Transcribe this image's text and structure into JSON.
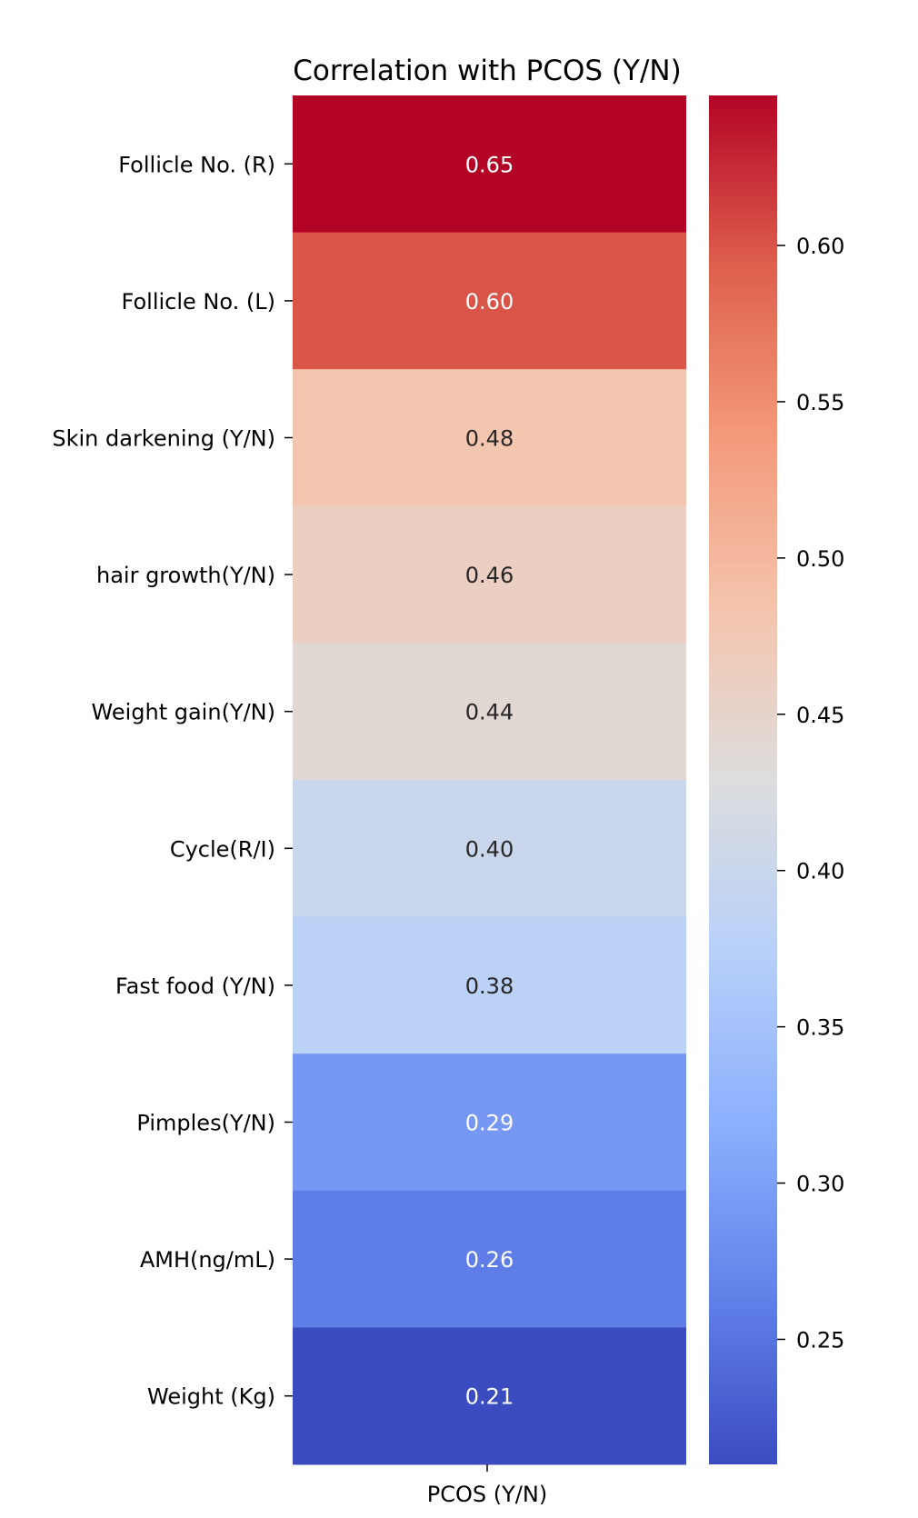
{
  "chart_data": {
    "type": "heatmap",
    "title": "Correlation with PCOS (Y/N)",
    "column": "PCOS (Y/N)",
    "rows": [
      "Follicle No. (R)",
      "Follicle No. (L)",
      "Skin darkening (Y/N)",
      "hair growth(Y/N)",
      "Weight gain(Y/N)",
      "Cycle(R/I)",
      "Fast food (Y/N)",
      "Pimples(Y/N)",
      "AMH(ng/mL)",
      "Weight (Kg)"
    ],
    "values": [
      0.65,
      0.6,
      0.48,
      0.46,
      0.44,
      0.4,
      0.38,
      0.29,
      0.26,
      0.21
    ],
    "value_labels": [
      "0.65",
      "0.60",
      "0.48",
      "0.46",
      "0.44",
      "0.40",
      "0.38",
      "0.29",
      "0.26",
      "0.21"
    ],
    "colormap": "coolwarm",
    "colorbar": {
      "range": [
        0.21,
        0.648
      ],
      "ticks": [
        0.25,
        0.3,
        0.35,
        0.4,
        0.45,
        0.5,
        0.55,
        0.6
      ],
      "tick_labels": [
        "0.25",
        "0.30",
        "0.35",
        "0.40",
        "0.45",
        "0.50",
        "0.55",
        "0.60"
      ]
    }
  }
}
